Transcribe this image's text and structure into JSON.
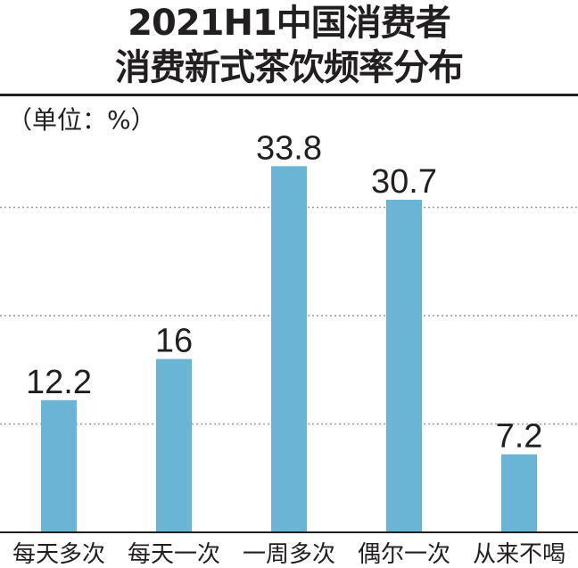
{
  "chart_data": {
    "type": "bar",
    "title": "2021H1中国消费者",
    "subtitle": "消费新式茶饮频率分布",
    "unit_label": "（单位：%）",
    "categories": [
      "每天多次",
      "每天一次",
      "一周多次",
      "偶尔一次",
      "从来不喝"
    ],
    "values": [
      12.2,
      16,
      33.8,
      30.7,
      7.2
    ],
    "value_labels": [
      "12.2",
      "16",
      "33.8",
      "30.7",
      "7.2"
    ],
    "ylim": [
      0,
      40
    ],
    "grid": true,
    "legend": "none",
    "colors": {
      "bar": "#6ab4d6",
      "grid": "#9a9a9a",
      "axis": "#231f20"
    }
  }
}
